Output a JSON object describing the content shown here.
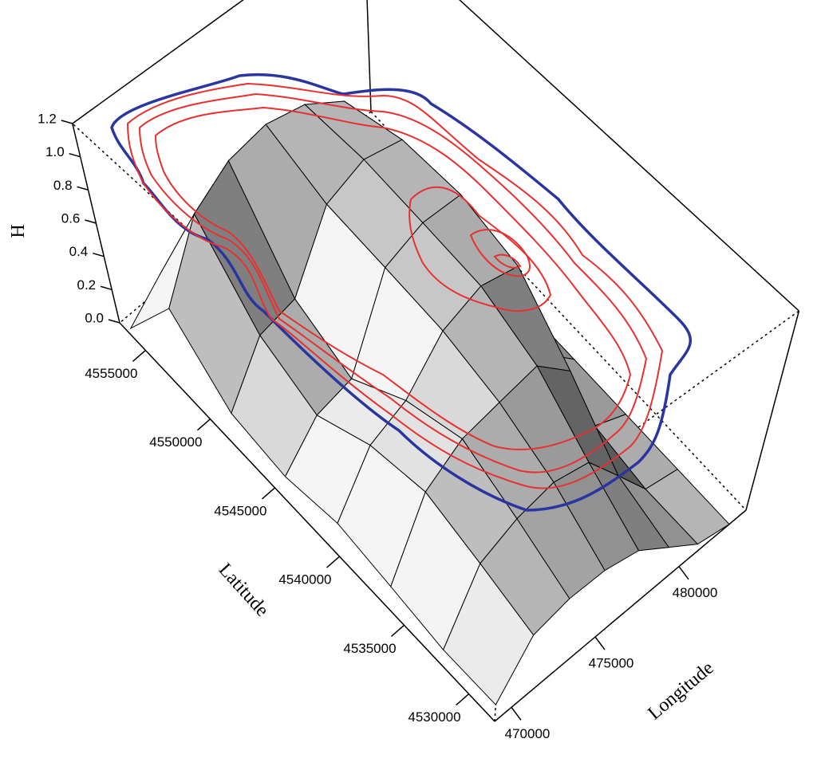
{
  "chart_data": {
    "type": "surface3d",
    "xlabel": "Longitude",
    "ylabel": "Latitude",
    "zlabel": "H",
    "xlim": [
      469000,
      484000
    ],
    "xticks": [
      470000,
      475000,
      480000
    ],
    "ylim": [
      4528000,
      4557000
    ],
    "yticks": [
      4530000,
      4535000,
      4540000,
      4545000,
      4550000,
      4555000
    ],
    "zlim": [
      0,
      1.2
    ],
    "zticks": [
      {
        "value": 0,
        "label": "0.0"
      },
      0.2,
      0.4,
      0.6,
      0.8,
      {
        "value": 1,
        "label": "1.0"
      },
      1.2
    ],
    "x": [
      469000,
      471000,
      473000,
      475000,
      477000,
      479000,
      481000,
      483000
    ],
    "y": [
      4528000,
      4532000,
      4536000,
      4540000,
      4544000,
      4548000,
      4552000,
      4556000
    ],
    "z": [
      [
        0.1,
        0.35,
        0.4,
        0.4,
        0.35,
        0.2,
        0.05,
        0
      ],
      [
        0.1,
        0.45,
        0.55,
        0.6,
        0.55,
        0.3,
        0.05,
        0
      ],
      [
        0.15,
        0.55,
        0.7,
        0.75,
        0.8,
        0.6,
        0.1,
        0
      ],
      [
        0.2,
        0.5,
        0.6,
        0.85,
        0.95,
        0.9,
        0.2,
        0
      ],
      [
        0.15,
        0.35,
        0.4,
        0.9,
        1.0,
        1.0,
        0.3,
        0
      ],
      [
        0.2,
        0.5,
        0.55,
        0.95,
        1.05,
        1.0,
        0.35,
        0
      ],
      [
        0.5,
        0.9,
        1.05,
        1.1,
        1.05,
        0.9,
        0.3,
        0
      ],
      [
        0.05,
        0.2,
        0.3,
        0.3,
        0.25,
        0.15,
        0.05,
        0
      ]
    ]
  }
}
